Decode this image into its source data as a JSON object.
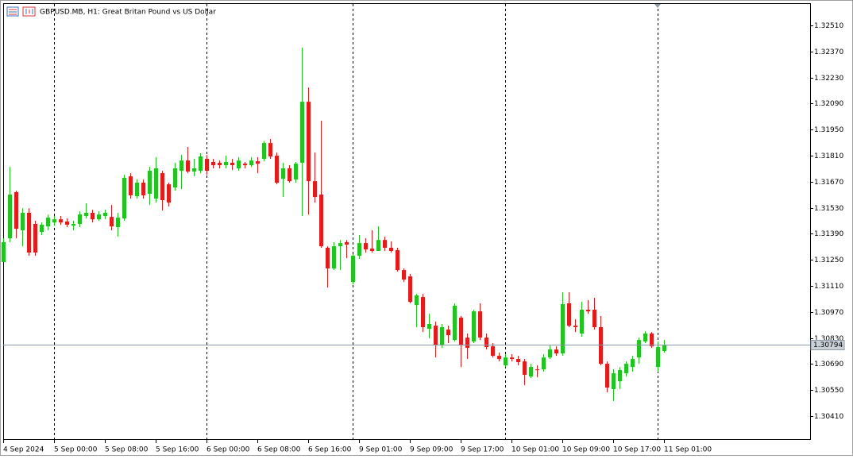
{
  "chart_data": {
    "type": "candlestick",
    "title": "GBPUSD.MB, H1:  Great Britan Pound vs US Dollar",
    "categories": [
      "4 Sep 2024",
      null,
      null,
      null,
      null,
      null,
      null,
      null,
      "5 Sep 00:00",
      null,
      null,
      null,
      null,
      null,
      null,
      null,
      "5 Sep 08:00",
      null,
      null,
      null,
      null,
      null,
      null,
      null,
      "5 Sep 16:00",
      null,
      null,
      null,
      null,
      null,
      null,
      null,
      "6 Sep 00:00",
      null,
      null,
      null,
      null,
      null,
      null,
      null,
      "6 Sep 08:00",
      null,
      null,
      null,
      null,
      null,
      null,
      null,
      "6 Sep 16:00",
      null,
      null,
      null,
      null,
      null,
      null,
      null,
      "9 Sep 01:00",
      null,
      null,
      null,
      null,
      null,
      null,
      null,
      "9 Sep 09:00",
      null,
      null,
      null,
      null,
      null,
      null,
      null,
      "9 Sep 17:00",
      null,
      null,
      null,
      null,
      null,
      null,
      null,
      "10 Sep 01:00",
      null,
      null,
      null,
      null,
      null,
      null,
      null,
      "10 Sep 09:00",
      null,
      null,
      null,
      null,
      null,
      null,
      null,
      "10 Sep 17:00",
      null,
      null,
      null,
      null,
      null,
      null,
      null,
      "11 Sep 01:00"
    ],
    "open": [
      1.31238,
      1.31366,
      1.31614,
      1.31409,
      1.31503,
      1.31443,
      1.314,
      1.3143,
      1.31451,
      1.31468,
      1.31456,
      1.31434,
      1.31443,
      1.31486,
      1.31503,
      1.31468,
      1.31486,
      1.31481,
      1.31426,
      1.31473,
      1.31699,
      1.31592,
      1.31665,
      1.31605,
      1.31579,
      1.31716,
      1.31656,
      1.31639,
      1.31729,
      1.31784,
      1.31725,
      1.31729,
      1.31793,
      1.31776,
      1.31772,
      1.31759,
      1.31772,
      1.31742,
      1.31767,
      1.31759,
      1.3178,
      1.31793,
      1.31878,
      1.3181,
      1.31686,
      1.31742,
      1.31682,
      1.31772,
      1.321,
      1.31673,
      1.31601,
      1.31315,
      1.31204,
      1.31323,
      1.31345,
      1.31131,
      1.31272,
      1.3134,
      1.3131,
      1.31298,
      1.31357,
      1.31315,
      1.31302,
      1.31195,
      1.31161,
      1.31007,
      1.3105,
      1.30879,
      1.30896,
      1.3079,
      1.30875,
      1.30819,
      1.30939,
      1.30832,
      1.30811,
      1.30973,
      1.30832,
      1.30785,
      1.30734,
      1.30683,
      1.30725,
      1.30717,
      1.30704,
      1.30623,
      1.30661,
      1.30661,
      1.30725,
      1.30768,
      1.30747,
      1.31016,
      1.30896,
      1.30854,
      1.30982,
      1.30982,
      1.30888,
      1.30691,
      1.30555,
      1.30597,
      1.3064,
      1.30674,
      1.30725,
      1.30811,
      1.30854,
      1.30674,
      1.3076
    ],
    "high": [
      1.31366,
      1.3175,
      1.31622,
      1.31528,
      1.31528,
      1.3146,
      1.31451,
      1.31494,
      1.31486,
      1.31486,
      1.31473,
      1.3146,
      1.31511,
      1.31554,
      1.3152,
      1.31511,
      1.3152,
      1.31545,
      1.31503,
      1.31708,
      1.31716,
      1.31682,
      1.31682,
      1.3175,
      1.31802,
      1.31729,
      1.31665,
      1.31772,
      1.31814,
      1.31857,
      1.31793,
      1.31823,
      1.31814,
      1.31793,
      1.31784,
      1.3181,
      1.31793,
      1.31802,
      1.31776,
      1.31802,
      1.31802,
      1.31887,
      1.319,
      1.31827,
      1.31772,
      1.31759,
      1.31776,
      1.32391,
      1.32177,
      1.31827,
      1.31998,
      1.31323,
      1.31345,
      1.31357,
      1.31357,
      1.31281,
      1.31383,
      1.31366,
      1.31409,
      1.3143,
      1.31375,
      1.31349,
      1.31315,
      1.31204,
      1.31174,
      1.31067,
      1.31067,
      1.3096,
      1.30918,
      1.30905,
      1.30896,
      1.31016,
      1.30948,
      1.30854,
      1.30982,
      1.31016,
      1.30854,
      1.30802,
      1.30751,
      1.30743,
      1.30743,
      1.30734,
      1.30717,
      1.30691,
      1.30683,
      1.30743,
      1.3079,
      1.30785,
      1.31076,
      1.31076,
      1.3093,
      1.31024,
      1.31033,
      1.31046,
      1.30948,
      1.30704,
      1.30661,
      1.30674,
      1.30704,
      1.30734,
      1.30832,
      1.30866,
      1.30862,
      1.30811,
      1.30819
    ],
    "low": [
      1.31238,
      1.31345,
      1.31366,
      1.31323,
      1.31272,
      1.31272,
      1.31383,
      1.31409,
      1.31434,
      1.31439,
      1.31426,
      1.31409,
      1.31426,
      1.31473,
      1.31451,
      1.3146,
      1.31468,
      1.31409,
      1.31375,
      1.3146,
      1.31579,
      1.31579,
      1.31579,
      1.31545,
      1.31558,
      1.31515,
      1.31537,
      1.31622,
      1.31631,
      1.31716,
      1.31699,
      1.31716,
      1.31708,
      1.31742,
      1.31742,
      1.31742,
      1.31733,
      1.31729,
      1.31742,
      1.3175,
      1.31716,
      1.3178,
      1.31793,
      1.31656,
      1.31588,
      1.31665,
      1.31665,
      1.31486,
      1.31494,
      1.31558,
      1.31315,
      1.31101,
      1.31195,
      1.31195,
      1.31259,
      1.31118,
      1.31255,
      1.31289,
      1.31289,
      1.31298,
      1.31298,
      1.31289,
      1.31187,
      1.31131,
      1.31016,
      1.30888,
      1.30862,
      1.30828,
      1.30725,
      1.30777,
      1.30802,
      1.30811,
      1.30674,
      1.30717,
      1.30802,
      1.30819,
      1.30768,
      1.30725,
      1.30704,
      1.30674,
      1.30704,
      1.30683,
      1.30576,
      1.30614,
      1.30619,
      1.30649,
      1.30717,
      1.30734,
      1.30734,
      1.30888,
      1.30862,
      1.30837,
      1.3096,
      1.30875,
      1.30683,
      1.30538,
      1.30491,
      1.30555,
      1.30623,
      1.30649,
      1.30691,
      1.30802,
      1.30777,
      1.30649,
      1.30751
    ],
    "close": [
      1.31345,
      1.31601,
      1.31417,
      1.31503,
      1.31289,
      1.31289,
      1.31439,
      1.31477,
      1.31468,
      1.31451,
      1.31439,
      1.31443,
      1.31494,
      1.31503,
      1.31468,
      1.31494,
      1.31503,
      1.3143,
      1.31477,
      1.31691,
      1.31597,
      1.31665,
      1.31597,
      1.31729,
      1.31742,
      1.31571,
      1.31558,
      1.31742,
      1.31784,
      1.31725,
      1.31742,
      1.31806,
      1.31729,
      1.31759,
      1.31759,
      1.31776,
      1.31759,
      1.31784,
      1.31759,
      1.31784,
      1.31767,
      1.31878,
      1.31806,
      1.31665,
      1.31742,
      1.31673,
      1.31767,
      1.321,
      1.31673,
      1.31588,
      1.31323,
      1.31204,
      1.31323,
      1.3134,
      1.31332,
      1.31272,
      1.3134,
      1.31306,
      1.31298,
      1.31357,
      1.31315,
      1.31298,
      1.31195,
      1.31144,
      1.31024,
      1.31059,
      1.30888,
      1.30905,
      1.3079,
      1.30888,
      1.30845,
      1.31003,
      1.3079,
      1.30777,
      1.30973,
      1.30832,
      1.30781,
      1.30734,
      1.30717,
      1.30725,
      1.30717,
      1.307,
      1.30632,
      1.30674,
      1.30657,
      1.30725,
      1.30768,
      1.30747,
      1.31012,
      1.30896,
      1.30888,
      1.30982,
      1.30973,
      1.30888,
      1.30691,
      1.30563,
      1.3064,
      1.30657,
      1.30691,
      1.30717,
      1.30819,
      1.30854,
      1.30785,
      1.30781,
      1.30794
    ],
    "up_color": "#1fc41f",
    "down_color": "#e31b1b",
    "current_price": 1.30794,
    "ylim": [
      1.30286,
      1.3263
    ],
    "yticks": [
      {
        "value": 1.3251,
        "label": "1.32510"
      },
      {
        "value": 1.3237,
        "label": "1.32370"
      },
      {
        "value": 1.3223,
        "label": "1.32230"
      },
      {
        "value": 1.3209,
        "label": "1.32090"
      },
      {
        "value": 1.3195,
        "label": "1.31950"
      },
      {
        "value": 1.3181,
        "label": "1.31810"
      },
      {
        "value": 1.3167,
        "label": "1.31670"
      },
      {
        "value": 1.3153,
        "label": "1.31530"
      },
      {
        "value": 1.3139,
        "label": "1.31390"
      },
      {
        "value": 1.3125,
        "label": "1.31250"
      },
      {
        "value": 1.3111,
        "label": "1.31110"
      },
      {
        "value": 1.3097,
        "label": "1.30970"
      },
      {
        "value": 1.3083,
        "label": "1.30830"
      },
      {
        "value": 1.3069,
        "label": "1.30690"
      },
      {
        "value": 1.3055,
        "label": "1.30550"
      },
      {
        "value": 1.3041,
        "label": "1.30410"
      }
    ]
  }
}
